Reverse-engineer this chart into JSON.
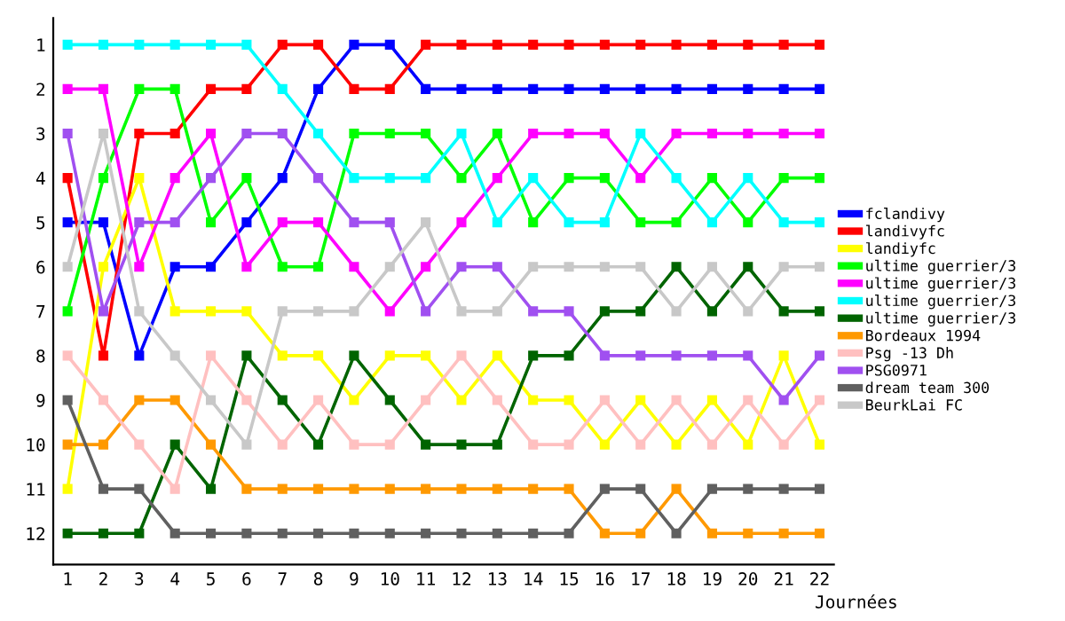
{
  "chart_data": {
    "type": "line",
    "xlabel": "Journées",
    "x": [
      1,
      2,
      3,
      4,
      5,
      6,
      7,
      8,
      9,
      10,
      11,
      12,
      13,
      14,
      15,
      16,
      17,
      18,
      19,
      20,
      21,
      22
    ],
    "xlim": [
      0.6,
      22.4
    ],
    "xticks": [
      1,
      2,
      3,
      4,
      5,
      6,
      7,
      8,
      9,
      10,
      11,
      12,
      13,
      14,
      15,
      16,
      17,
      18,
      19,
      20,
      21,
      22
    ],
    "ylim": [
      12.7,
      0.4
    ],
    "yticks": [
      1,
      2,
      3,
      4,
      5,
      6,
      7,
      8,
      9,
      10,
      11,
      12
    ],
    "grid": false,
    "legend": "right",
    "marker": "square",
    "line_style": "solid",
    "series": [
      {
        "name": "fclandivy",
        "color": "#0000ff",
        "values": [
          5,
          5,
          8,
          6,
          6,
          5,
          4,
          2,
          1,
          1,
          2,
          2,
          2,
          2,
          2,
          2,
          2,
          2,
          2,
          2,
          2,
          2
        ]
      },
      {
        "name": "landivyfc",
        "color": "#ff0000",
        "values": [
          4,
          8,
          3,
          3,
          2,
          2,
          1,
          1,
          2,
          2,
          1,
          1,
          1,
          1,
          1,
          1,
          1,
          1,
          1,
          1,
          1,
          1
        ]
      },
      {
        "name": "landiyfc",
        "color": "#ffff00",
        "values": [
          11,
          6,
          4,
          7,
          7,
          7,
          8,
          8,
          9,
          8,
          8,
          9,
          8,
          9,
          9,
          10,
          9,
          10,
          9,
          10,
          8,
          10
        ]
      },
      {
        "name": "ultime guerrier/3",
        "color": "#00ff00",
        "values": [
          7,
          4,
          2,
          2,
          5,
          4,
          6,
          6,
          3,
          3,
          3,
          4,
          3,
          5,
          4,
          4,
          5,
          5,
          4,
          5,
          4,
          4
        ]
      },
      {
        "name": "ultime guerrier/3",
        "color": "#ff00ff",
        "values": [
          2,
          2,
          6,
          4,
          3,
          6,
          5,
          5,
          6,
          7,
          6,
          5,
          4,
          3,
          3,
          3,
          4,
          3,
          3,
          3,
          3,
          3
        ]
      },
      {
        "name": "ultime guerrier/3",
        "color": "#00ffff",
        "values": [
          1,
          1,
          1,
          1,
          1,
          1,
          2,
          3,
          4,
          4,
          4,
          3,
          5,
          4,
          5,
          5,
          3,
          4,
          5,
          4,
          5,
          5
        ]
      },
      {
        "name": "ultime guerrier/3",
        "color": "#006400",
        "values": [
          12,
          12,
          12,
          10,
          11,
          8,
          9,
          10,
          8,
          9,
          10,
          10,
          10,
          8,
          8,
          7,
          7,
          6,
          7,
          6,
          7,
          7
        ]
      },
      {
        "name": "Bordeaux 1994",
        "color": "#ff9900",
        "values": [
          10,
          10,
          9,
          9,
          10,
          11,
          11,
          11,
          11,
          11,
          11,
          11,
          11,
          11,
          11,
          12,
          12,
          11,
          12,
          12,
          12,
          12
        ]
      },
      {
        "name": "Psg -13 Dh",
        "color": "#ffc0c0",
        "values": [
          8,
          9,
          10,
          11,
          8,
          9,
          10,
          9,
          10,
          10,
          9,
          8,
          9,
          10,
          10,
          9,
          10,
          9,
          10,
          9,
          10,
          9
        ]
      },
      {
        "name": "PSG0971",
        "color": "#a050f0",
        "values": [
          3,
          7,
          5,
          5,
          4,
          3,
          3,
          4,
          5,
          5,
          7,
          6,
          6,
          7,
          7,
          8,
          8,
          8,
          8,
          8,
          9,
          8
        ]
      },
      {
        "name": "dream team 300",
        "color": "#606060",
        "values": [
          9,
          11,
          11,
          12,
          12,
          12,
          12,
          12,
          12,
          12,
          12,
          12,
          12,
          12,
          12,
          11,
          11,
          12,
          11,
          11,
          11,
          11
        ]
      },
      {
        "name": "BeurkLai FC",
        "color": "#c8c8c8",
        "values": [
          6,
          3,
          7,
          8,
          9,
          10,
          7,
          7,
          7,
          6,
          5,
          7,
          7,
          6,
          6,
          6,
          6,
          7,
          6,
          7,
          6,
          6
        ]
      }
    ]
  }
}
